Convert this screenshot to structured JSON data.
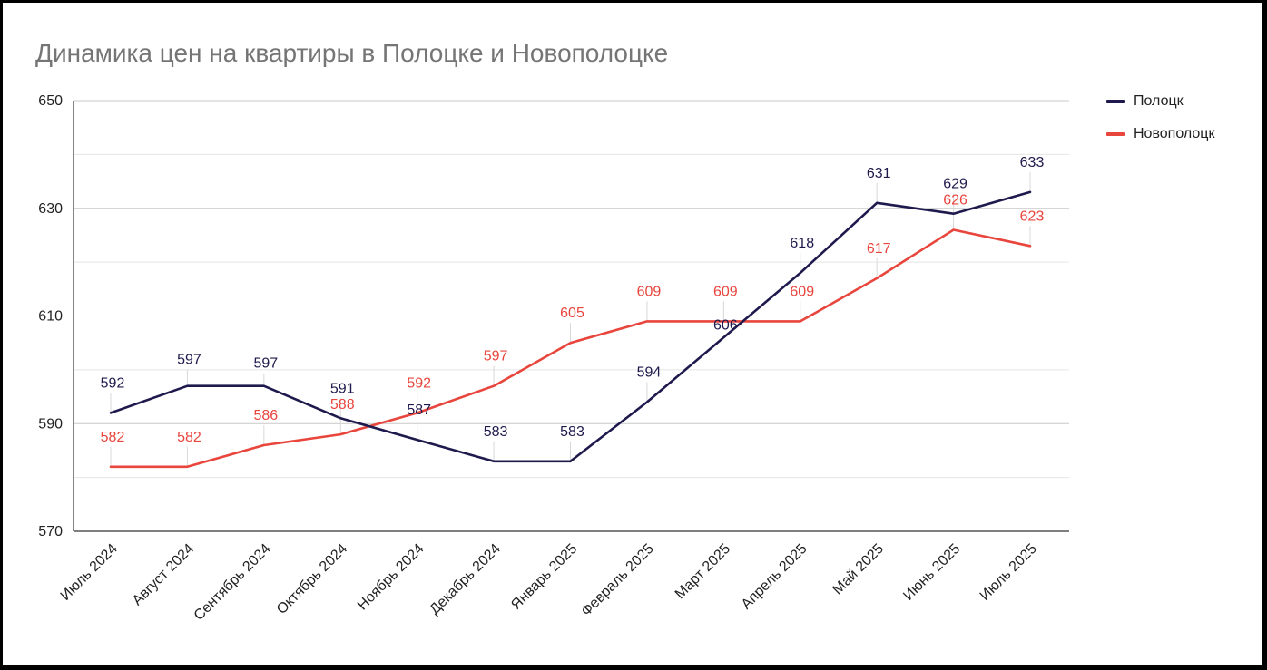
{
  "chart_data": {
    "type": "line",
    "title": "Динамика цен на квартиры в Полоцке и Новополоцке",
    "xlabel": "",
    "ylabel": "",
    "ylim": [
      570,
      650
    ],
    "yticks": [
      570,
      590,
      610,
      630,
      650
    ],
    "grid": true,
    "legend_position": "top-right",
    "categories": [
      "Июль 2024",
      "Август 2024",
      "Сентябрь 2024",
      "Октябрь 2024",
      "Ноябрь 2024",
      "Декабрь 2024",
      "Январь 2025",
      "Февраль 2025",
      "Март 2025",
      "Апрель 2025",
      "Май 2025",
      "Июнь 2025",
      "Июль 2025"
    ],
    "series": [
      {
        "name": "Полоцк",
        "color": "#1f1a4d",
        "values": [
          592,
          597,
          597,
          591,
          587,
          583,
          583,
          594,
          606,
          618,
          631,
          629,
          633
        ]
      },
      {
        "name": "Новополоцк",
        "color": "#e8453c",
        "values": [
          582,
          582,
          586,
          588,
          592,
          597,
          605,
          609,
          609,
          609,
          617,
          626,
          623
        ]
      }
    ]
  }
}
